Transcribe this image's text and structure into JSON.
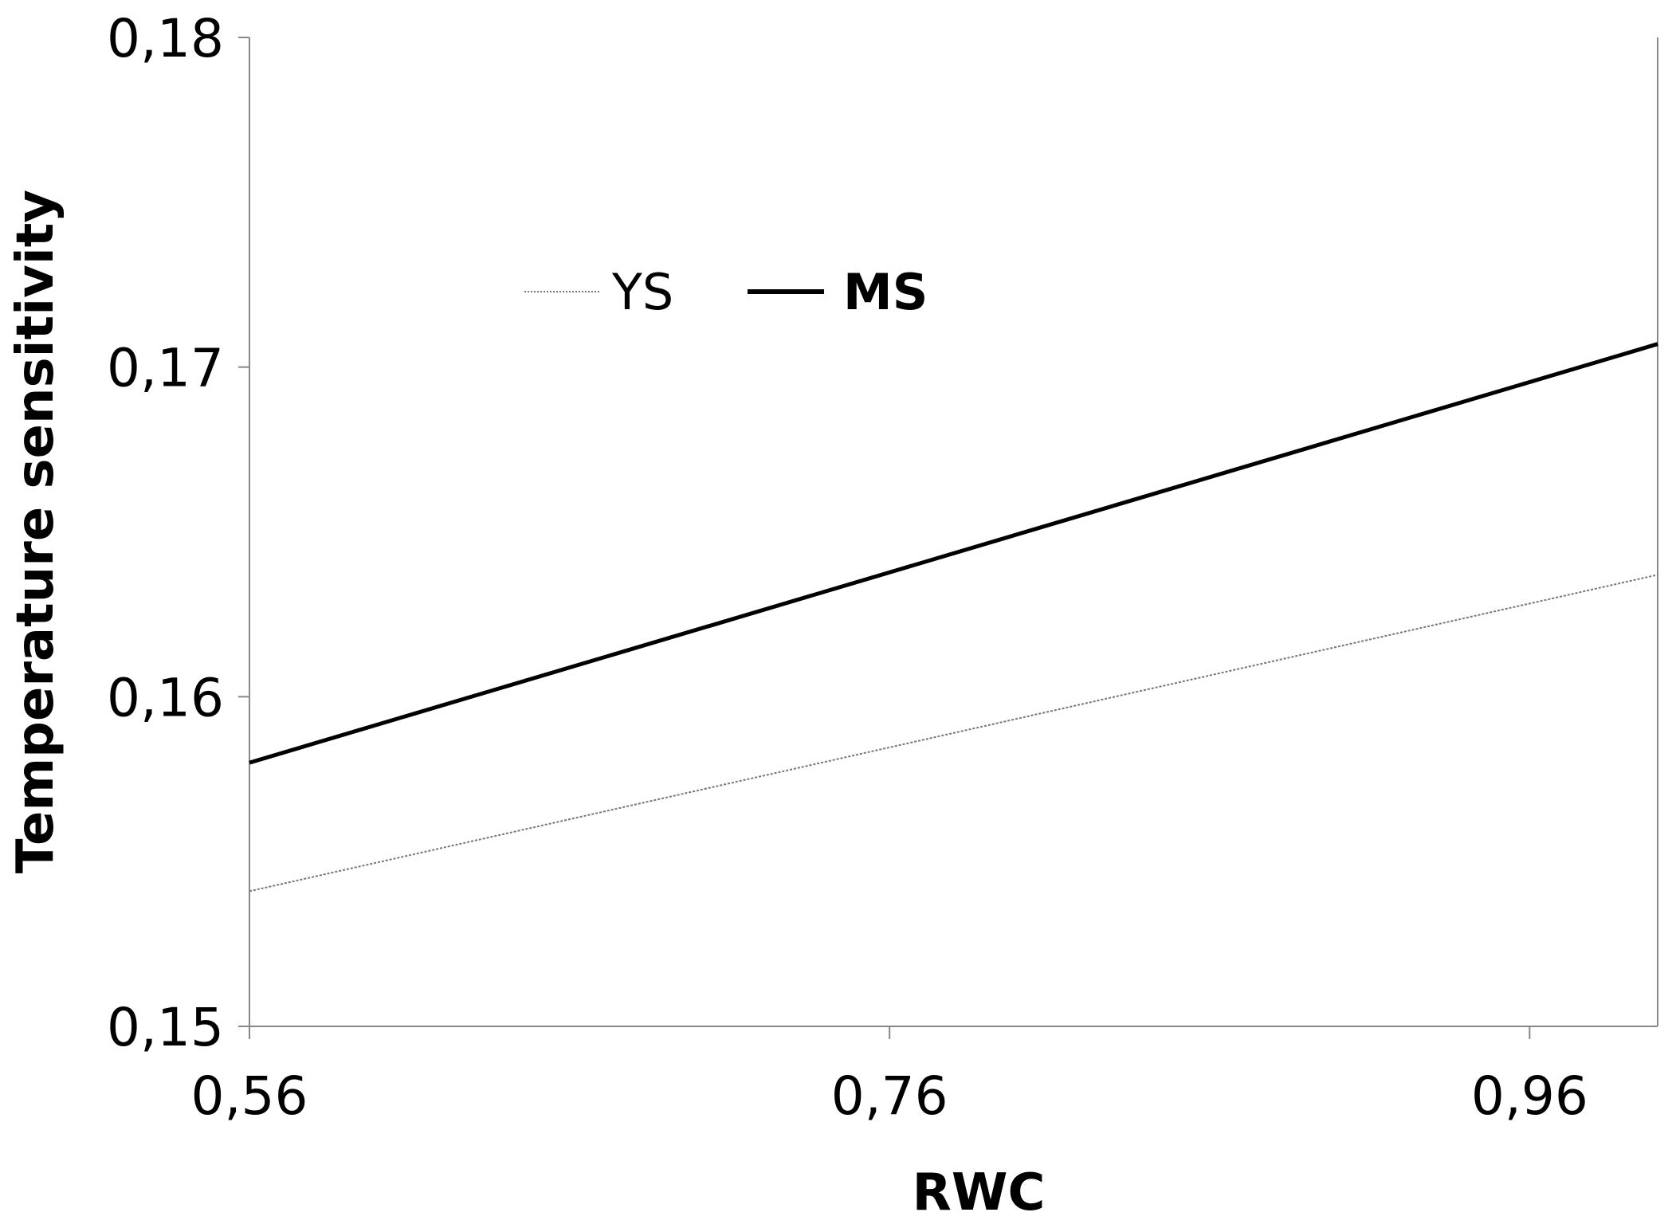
{
  "chart_data": {
    "type": "line",
    "xlabel": "RWC",
    "ylabel": "Temperature sensitivity",
    "xlim": [
      0.56,
      1.0
    ],
    "ylim": [
      0.15,
      0.18
    ],
    "x_ticks": [
      "0,56",
      "0,76",
      "0,96"
    ],
    "x_tick_values": [
      0.56,
      0.76,
      0.96
    ],
    "y_ticks": [
      "0,15",
      "0,16",
      "0,17",
      "0,18"
    ],
    "y_tick_values": [
      0.15,
      0.16,
      0.17,
      0.18
    ],
    "grid": false,
    "legend_position": "top-left",
    "series": [
      {
        "name": "YS",
        "style": "dotted-thin",
        "color": "#777777",
        "x": [
          0.56,
          1.0
        ],
        "y": [
          0.1541,
          0.1637
        ]
      },
      {
        "name": "MS",
        "style": "solid-thick",
        "color": "#000000",
        "x": [
          0.56,
          1.0
        ],
        "y": [
          0.158,
          0.1707
        ]
      }
    ]
  }
}
